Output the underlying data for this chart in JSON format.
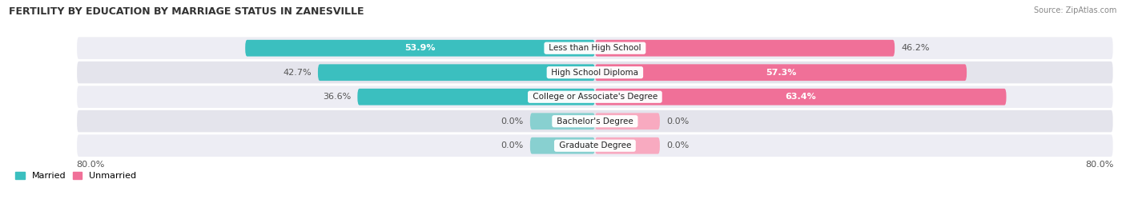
{
  "title": "FERTILITY BY EDUCATION BY MARRIAGE STATUS IN ZANESVILLE",
  "source": "Source: ZipAtlas.com",
  "categories": [
    "Less than High School",
    "High School Diploma",
    "College or Associate's Degree",
    "Bachelor's Degree",
    "Graduate Degree"
  ],
  "married": [
    53.9,
    42.7,
    36.6,
    0.0,
    0.0
  ],
  "unmarried": [
    46.2,
    57.3,
    63.4,
    0.0,
    0.0
  ],
  "married_color": "#3bbfbf",
  "unmarried_color": "#f07098",
  "married_light_color": "#88d0d0",
  "unmarried_light_color": "#f8aac0",
  "row_bg_even": "#ededf4",
  "row_bg_odd": "#e4e4ec",
  "x_axis_left_label": "80.0%",
  "x_axis_right_label": "80.0%",
  "max_val": 80.0,
  "title_fontsize": 9,
  "source_fontsize": 7,
  "label_fontsize": 8,
  "category_fontsize": 7.5,
  "zero_bar_size": 10.0
}
